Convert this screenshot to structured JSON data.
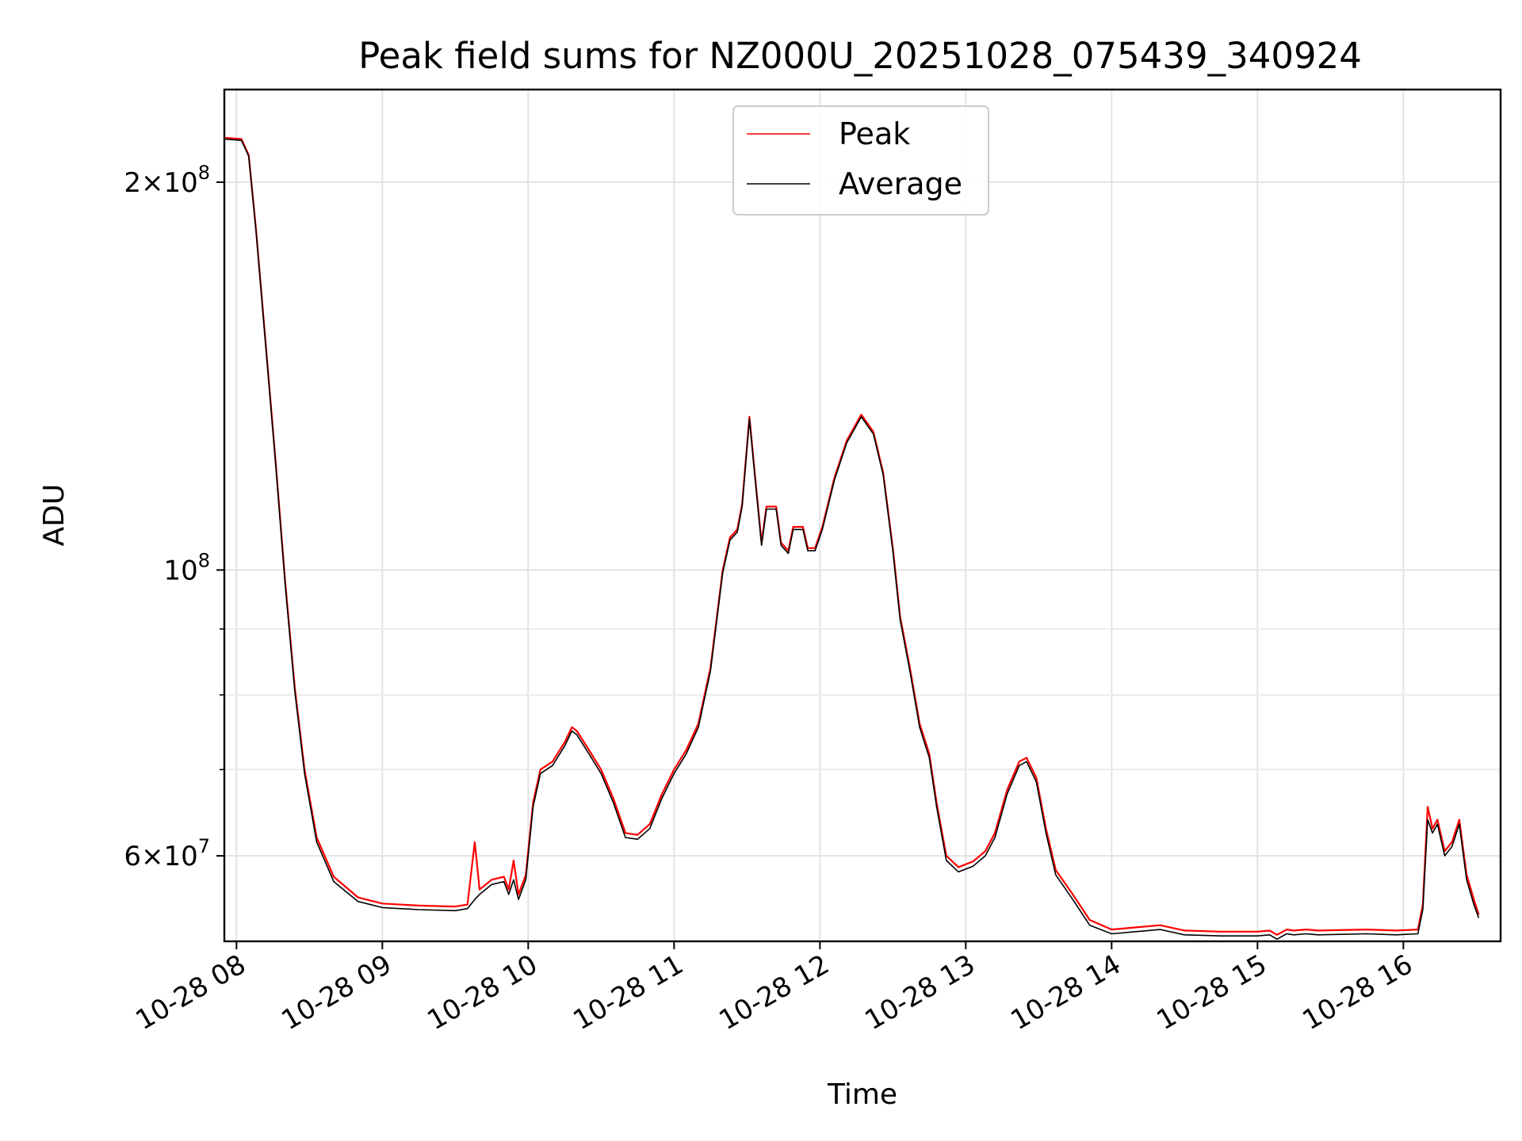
{
  "chart_data": {
    "type": "line",
    "title": "Peak field sums for NZ000U_20251028_075439_340924",
    "xlabel": "Time",
    "ylabel": "ADU",
    "yscale": "log",
    "grid": true,
    "legend_position": "top-center",
    "xlim": [
      "2025-10-28 07:55",
      "2025-10-28 16:40"
    ],
    "ylim": [
      51500000,
      236000000
    ],
    "x_ticks": [
      {
        "value": "2025-10-28 08:00",
        "label": "10-28 08"
      },
      {
        "value": "2025-10-28 09:00",
        "label": "10-28 09"
      },
      {
        "value": "2025-10-28 10:00",
        "label": "10-28 10"
      },
      {
        "value": "2025-10-28 11:00",
        "label": "10-28 11"
      },
      {
        "value": "2025-10-28 12:00",
        "label": "10-28 12"
      },
      {
        "value": "2025-10-28 13:00",
        "label": "10-28 13"
      },
      {
        "value": "2025-10-28 14:00",
        "label": "10-28 14"
      },
      {
        "value": "2025-10-28 15:00",
        "label": "10-28 15"
      },
      {
        "value": "2025-10-28 16:00",
        "label": "10-28 16"
      }
    ],
    "y_major_ticks": [
      {
        "value": 60000000,
        "mantissa": "6×10",
        "exp": "7"
      },
      {
        "value": 100000000,
        "mantissa": "10",
        "exp": "8"
      },
      {
        "value": 200000000,
        "mantissa": "2×10",
        "exp": "8"
      }
    ],
    "y_minor_ticks": [
      {
        "value": 70000000,
        "label": ""
      },
      {
        "value": 80000000,
        "label": ""
      },
      {
        "value": 90000000,
        "label": ""
      }
    ],
    "series": [
      {
        "name": "Peak",
        "color": "#ff0000",
        "points": [
          [
            "2025-10-28 07:55",
            216500000
          ],
          [
            "2025-10-28 08:02",
            216000000
          ],
          [
            "2025-10-28 08:05",
            210000000
          ],
          [
            "2025-10-28 08:08",
            184000000
          ],
          [
            "2025-10-28 08:12",
            150000000
          ],
          [
            "2025-10-28 08:16",
            122000000
          ],
          [
            "2025-10-28 08:20",
            98000000
          ],
          [
            "2025-10-28 08:24",
            81000000
          ],
          [
            "2025-10-28 08:28",
            70000000
          ],
          [
            "2025-10-28 08:33",
            62000000
          ],
          [
            "2025-10-28 08:40",
            57800000
          ],
          [
            "2025-10-28 08:50",
            55700000
          ],
          [
            "2025-10-28 09:00",
            55100000
          ],
          [
            "2025-10-28 09:15",
            54900000
          ],
          [
            "2025-10-28 09:30",
            54800000
          ],
          [
            "2025-10-28 09:35",
            55000000
          ],
          [
            "2025-10-28 09:38",
            61500000
          ],
          [
            "2025-10-28 09:40",
            56500000
          ],
          [
            "2025-10-28 09:45",
            57500000
          ],
          [
            "2025-10-28 09:50",
            57800000
          ],
          [
            "2025-10-28 09:52",
            56500000
          ],
          [
            "2025-10-28 09:54",
            59500000
          ],
          [
            "2025-10-28 09:56",
            56000000
          ],
          [
            "2025-10-28 09:59",
            58000000
          ],
          [
            "2025-10-28 10:02",
            66000000
          ],
          [
            "2025-10-28 10:05",
            70000000
          ],
          [
            "2025-10-28 10:10",
            71000000
          ],
          [
            "2025-10-28 10:15",
            73500000
          ],
          [
            "2025-10-28 10:18",
            75500000
          ],
          [
            "2025-10-28 10:20",
            75000000
          ],
          [
            "2025-10-28 10:25",
            72500000
          ],
          [
            "2025-10-28 10:30",
            70000000
          ],
          [
            "2025-10-28 10:35",
            66500000
          ],
          [
            "2025-10-28 10:40",
            62500000
          ],
          [
            "2025-10-28 10:45",
            62300000
          ],
          [
            "2025-10-28 10:50",
            63500000
          ],
          [
            "2025-10-28 10:55",
            67000000
          ],
          [
            "2025-10-28 11:00",
            70000000
          ],
          [
            "2025-10-28 11:05",
            72500000
          ],
          [
            "2025-10-28 11:10",
            76000000
          ],
          [
            "2025-10-28 11:15",
            84000000
          ],
          [
            "2025-10-28 11:20",
            100000000
          ],
          [
            "2025-10-28 11:23",
            106000000
          ],
          [
            "2025-10-28 11:26",
            107500000
          ],
          [
            "2025-10-28 11:28",
            112500000
          ],
          [
            "2025-10-28 11:31",
            131500000
          ],
          [
            "2025-10-28 11:33",
            120000000
          ],
          [
            "2025-10-28 11:36",
            105000000
          ],
          [
            "2025-10-28 11:38",
            112000000
          ],
          [
            "2025-10-28 11:42",
            112000000
          ],
          [
            "2025-10-28 11:44",
            105000000
          ],
          [
            "2025-10-28 11:47",
            103500000
          ],
          [
            "2025-10-28 11:49",
            108000000
          ],
          [
            "2025-10-28 11:53",
            108000000
          ],
          [
            "2025-10-28 11:55",
            104000000
          ],
          [
            "2025-10-28 11:58",
            104000000
          ],
          [
            "2025-10-28 12:01",
            108000000
          ],
          [
            "2025-10-28 12:06",
            118000000
          ],
          [
            "2025-10-28 12:11",
            126000000
          ],
          [
            "2025-10-28 12:17",
            132000000
          ],
          [
            "2025-10-28 12:22",
            128000000
          ],
          [
            "2025-10-28 12:26",
            119000000
          ],
          [
            "2025-10-28 12:30",
            104000000
          ],
          [
            "2025-10-28 12:33",
            92000000
          ],
          [
            "2025-10-28 12:37",
            84000000
          ],
          [
            "2025-10-28 12:41",
            76000000
          ],
          [
            "2025-10-28 12:45",
            72000000
          ],
          [
            "2025-10-28 12:48",
            66000000
          ],
          [
            "2025-10-28 12:52",
            60000000
          ],
          [
            "2025-10-28 12:57",
            58800000
          ],
          [
            "2025-10-28 13:03",
            59400000
          ],
          [
            "2025-10-28 13:08",
            60500000
          ],
          [
            "2025-10-28 13:12",
            62500000
          ],
          [
            "2025-10-28 13:17",
            67500000
          ],
          [
            "2025-10-28 13:22",
            71000000
          ],
          [
            "2025-10-28 13:25",
            71500000
          ],
          [
            "2025-10-28 13:29",
            69000000
          ],
          [
            "2025-10-28 13:33",
            63000000
          ],
          [
            "2025-10-28 13:37",
            58500000
          ],
          [
            "2025-10-28 13:44",
            56000000
          ],
          [
            "2025-10-28 13:51",
            53500000
          ],
          [
            "2025-10-28 14:00",
            52600000
          ],
          [
            "2025-10-28 14:10",
            52800000
          ],
          [
            "2025-10-28 14:20",
            53000000
          ],
          [
            "2025-10-28 14:30",
            52500000
          ],
          [
            "2025-10-28 14:45",
            52400000
          ],
          [
            "2025-10-28 15:00",
            52400000
          ],
          [
            "2025-10-28 15:05",
            52500000
          ],
          [
            "2025-10-28 15:08",
            52100000
          ],
          [
            "2025-10-28 15:12",
            52600000
          ],
          [
            "2025-10-28 15:15",
            52500000
          ],
          [
            "2025-10-28 15:20",
            52600000
          ],
          [
            "2025-10-28 15:25",
            52500000
          ],
          [
            "2025-10-28 15:45",
            52600000
          ],
          [
            "2025-10-28 15:57",
            52500000
          ],
          [
            "2025-10-28 16:06",
            52600000
          ],
          [
            "2025-10-28 16:08",
            55000000
          ],
          [
            "2025-10-28 16:10",
            65500000
          ],
          [
            "2025-10-28 16:12",
            63000000
          ],
          [
            "2025-10-28 16:14",
            64000000
          ],
          [
            "2025-10-28 16:17",
            60500000
          ],
          [
            "2025-10-28 16:20",
            61500000
          ],
          [
            "2025-10-28 16:23",
            64000000
          ],
          [
            "2025-10-28 16:26",
            58000000
          ],
          [
            "2025-10-28 16:29",
            55500000
          ],
          [
            "2025-10-28 16:31",
            54000000
          ]
        ]
      },
      {
        "name": "Average",
        "color": "#000000",
        "points": [
          [
            "2025-10-28 07:55",
            216000000
          ],
          [
            "2025-10-28 08:02",
            215500000
          ],
          [
            "2025-10-28 08:05",
            209500000
          ],
          [
            "2025-10-28 08:08",
            183500000
          ],
          [
            "2025-10-28 08:12",
            149500000
          ],
          [
            "2025-10-28 08:16",
            121500000
          ],
          [
            "2025-10-28 08:20",
            97500000
          ],
          [
            "2025-10-28 08:24",
            80500000
          ],
          [
            "2025-10-28 08:28",
            69500000
          ],
          [
            "2025-10-28 08:33",
            61500000
          ],
          [
            "2025-10-28 08:40",
            57300000
          ],
          [
            "2025-10-28 08:50",
            55300000
          ],
          [
            "2025-10-28 09:00",
            54700000
          ],
          [
            "2025-10-28 09:15",
            54500000
          ],
          [
            "2025-10-28 09:30",
            54400000
          ],
          [
            "2025-10-28 09:35",
            54600000
          ],
          [
            "2025-10-28 09:38",
            55500000
          ],
          [
            "2025-10-28 09:40",
            56000000
          ],
          [
            "2025-10-28 09:45",
            57000000
          ],
          [
            "2025-10-28 09:50",
            57300000
          ],
          [
            "2025-10-28 09:52",
            56000000
          ],
          [
            "2025-10-28 09:54",
            57500000
          ],
          [
            "2025-10-28 09:56",
            55500000
          ],
          [
            "2025-10-28 09:59",
            57500000
          ],
          [
            "2025-10-28 10:02",
            65500000
          ],
          [
            "2025-10-28 10:05",
            69500000
          ],
          [
            "2025-10-28 10:10",
            70500000
          ],
          [
            "2025-10-28 10:15",
            73000000
          ],
          [
            "2025-10-28 10:18",
            75000000
          ],
          [
            "2025-10-28 10:20",
            74500000
          ],
          [
            "2025-10-28 10:25",
            72000000
          ],
          [
            "2025-10-28 10:30",
            69500000
          ],
          [
            "2025-10-28 10:35",
            66000000
          ],
          [
            "2025-10-28 10:40",
            62000000
          ],
          [
            "2025-10-28 10:45",
            61800000
          ],
          [
            "2025-10-28 10:50",
            63000000
          ],
          [
            "2025-10-28 10:55",
            66500000
          ],
          [
            "2025-10-28 11:00",
            69500000
          ],
          [
            "2025-10-28 11:05",
            72000000
          ],
          [
            "2025-10-28 11:10",
            75500000
          ],
          [
            "2025-10-28 11:15",
            83500000
          ],
          [
            "2025-10-28 11:20",
            99500000
          ],
          [
            "2025-10-28 11:23",
            105500000
          ],
          [
            "2025-10-28 11:26",
            107000000
          ],
          [
            "2025-10-28 11:28",
            112000000
          ],
          [
            "2025-10-28 11:31",
            131000000
          ],
          [
            "2025-10-28 11:33",
            119500000
          ],
          [
            "2025-10-28 11:36",
            104500000
          ],
          [
            "2025-10-28 11:38",
            111500000
          ],
          [
            "2025-10-28 11:42",
            111500000
          ],
          [
            "2025-10-28 11:44",
            104500000
          ],
          [
            "2025-10-28 11:47",
            103000000
          ],
          [
            "2025-10-28 11:49",
            107500000
          ],
          [
            "2025-10-28 11:53",
            107500000
          ],
          [
            "2025-10-28 11:55",
            103500000
          ],
          [
            "2025-10-28 11:58",
            103500000
          ],
          [
            "2025-10-28 12:01",
            107500000
          ],
          [
            "2025-10-28 12:06",
            117500000
          ],
          [
            "2025-10-28 12:11",
            125500000
          ],
          [
            "2025-10-28 12:17",
            131500000
          ],
          [
            "2025-10-28 12:22",
            127500000
          ],
          [
            "2025-10-28 12:26",
            118500000
          ],
          [
            "2025-10-28 12:30",
            103500000
          ],
          [
            "2025-10-28 12:33",
            91500000
          ],
          [
            "2025-10-28 12:37",
            83500000
          ],
          [
            "2025-10-28 12:41",
            75500000
          ],
          [
            "2025-10-28 12:45",
            71500000
          ],
          [
            "2025-10-28 12:48",
            65500000
          ],
          [
            "2025-10-28 12:52",
            59500000
          ],
          [
            "2025-10-28 12:57",
            58300000
          ],
          [
            "2025-10-28 13:03",
            58900000
          ],
          [
            "2025-10-28 13:08",
            60000000
          ],
          [
            "2025-10-28 13:12",
            62000000
          ],
          [
            "2025-10-28 13:17",
            67000000
          ],
          [
            "2025-10-28 13:22",
            70500000
          ],
          [
            "2025-10-28 13:25",
            71000000
          ],
          [
            "2025-10-28 13:29",
            68500000
          ],
          [
            "2025-10-28 13:33",
            62500000
          ],
          [
            "2025-10-28 13:37",
            58000000
          ],
          [
            "2025-10-28 13:44",
            55500000
          ],
          [
            "2025-10-28 13:51",
            53000000
          ],
          [
            "2025-10-28 14:00",
            52200000
          ],
          [
            "2025-10-28 14:10",
            52400000
          ],
          [
            "2025-10-28 14:20",
            52600000
          ],
          [
            "2025-10-28 14:30",
            52100000
          ],
          [
            "2025-10-28 14:45",
            52000000
          ],
          [
            "2025-10-28 15:00",
            52000000
          ],
          [
            "2025-10-28 15:05",
            52100000
          ],
          [
            "2025-10-28 15:08",
            51700000
          ],
          [
            "2025-10-28 15:12",
            52200000
          ],
          [
            "2025-10-28 15:15",
            52100000
          ],
          [
            "2025-10-28 15:20",
            52200000
          ],
          [
            "2025-10-28 15:25",
            52100000
          ],
          [
            "2025-10-28 15:45",
            52200000
          ],
          [
            "2025-10-28 15:57",
            52100000
          ],
          [
            "2025-10-28 16:06",
            52200000
          ],
          [
            "2025-10-28 16:08",
            54500000
          ],
          [
            "2025-10-28 16:10",
            64000000
          ],
          [
            "2025-10-28 16:12",
            62500000
          ],
          [
            "2025-10-28 16:14",
            63500000
          ],
          [
            "2025-10-28 16:17",
            60000000
          ],
          [
            "2025-10-28 16:20",
            61000000
          ],
          [
            "2025-10-28 16:23",
            63500000
          ],
          [
            "2025-10-28 16:26",
            57500000
          ],
          [
            "2025-10-28 16:29",
            55000000
          ],
          [
            "2025-10-28 16:31",
            53700000
          ]
        ]
      }
    ]
  }
}
